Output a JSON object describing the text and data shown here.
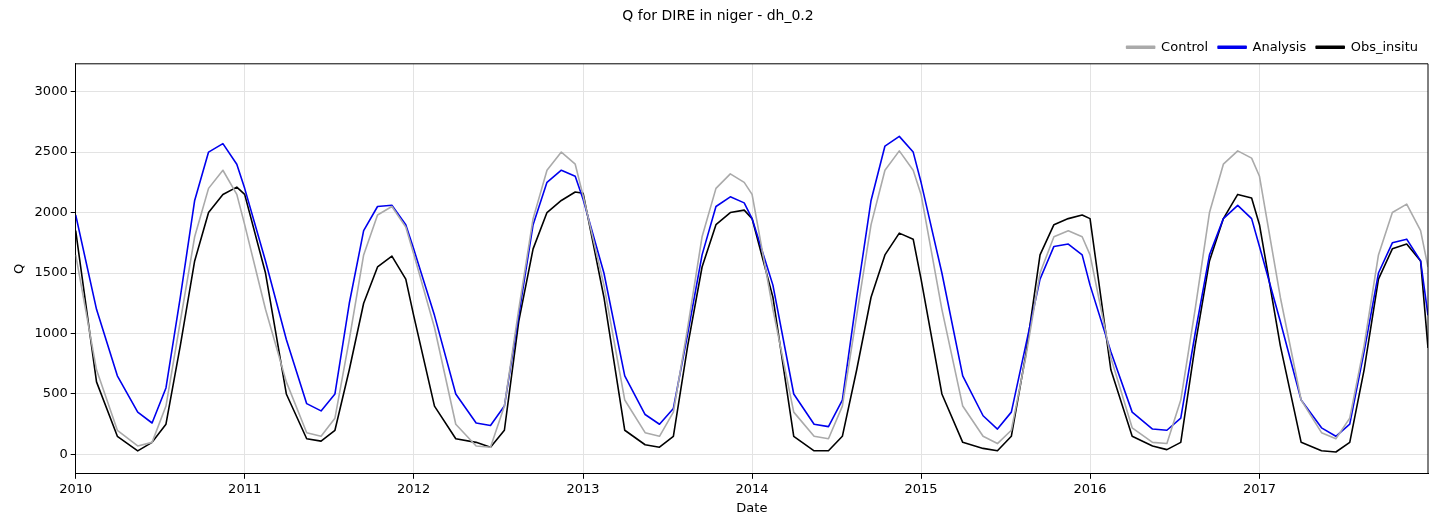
{
  "chart_data": {
    "type": "line",
    "title": "Q for DIRE in niger - dh_0.2",
    "xlabel": "Date",
    "ylabel": "Q",
    "x": [
      "2010-01-01",
      "2010-02-15",
      "2010-04-01",
      "2010-05-15",
      "2010-06-15",
      "2010-07-15",
      "2010-08-15",
      "2010-09-15",
      "2010-10-15",
      "2010-11-15",
      "2010-12-15",
      "2011-01-01",
      "2011-02-15",
      "2011-04-01",
      "2011-05-15",
      "2011-06-15",
      "2011-07-15",
      "2011-08-15",
      "2011-09-15",
      "2011-10-15",
      "2011-11-15",
      "2011-12-15",
      "2012-01-01",
      "2012-02-15",
      "2012-04-01",
      "2012-05-15",
      "2012-06-15",
      "2012-07-15",
      "2012-08-15",
      "2012-09-15",
      "2012-10-15",
      "2012-11-15",
      "2012-12-15",
      "2013-01-01",
      "2013-02-15",
      "2013-04-01",
      "2013-05-15",
      "2013-06-15",
      "2013-07-15",
      "2013-08-15",
      "2013-09-15",
      "2013-10-15",
      "2013-11-15",
      "2013-12-15",
      "2014-01-01",
      "2014-02-15",
      "2014-04-01",
      "2014-05-15",
      "2014-06-15",
      "2014-07-15",
      "2014-08-15",
      "2014-09-15",
      "2014-10-15",
      "2014-11-15",
      "2014-12-15",
      "2015-01-01",
      "2015-02-15",
      "2015-04-01",
      "2015-05-15",
      "2015-06-15",
      "2015-07-15",
      "2015-08-15",
      "2015-09-15",
      "2015-10-15",
      "2015-11-15",
      "2015-12-15",
      "2016-01-01",
      "2016-02-15",
      "2016-04-01",
      "2016-05-15",
      "2016-06-15",
      "2016-07-15",
      "2016-08-15",
      "2016-09-15",
      "2016-10-15",
      "2016-11-15",
      "2016-12-15",
      "2017-01-01",
      "2017-02-15",
      "2017-04-01",
      "2017-05-15",
      "2017-06-15",
      "2017-07-15",
      "2017-08-15",
      "2017-09-15",
      "2017-10-15",
      "2017-11-15",
      "2017-12-15",
      "2017-12-31"
    ],
    "series": [
      {
        "name": "Control",
        "color": "#aaaaaa",
        "values": [
          1650,
          700,
          200,
          70,
          100,
          400,
          1100,
          1800,
          2200,
          2350,
          2150,
          1900,
          1200,
          600,
          180,
          150,
          300,
          950,
          1650,
          1980,
          2050,
          1880,
          1660,
          1050,
          250,
          70,
          60,
          400,
          1200,
          1950,
          2350,
          2500,
          2400,
          2140,
          1400,
          450,
          180,
          150,
          350,
          1050,
          1800,
          2200,
          2320,
          2250,
          2150,
          1200,
          350,
          150,
          130,
          400,
          1150,
          1900,
          2350,
          2510,
          2350,
          2150,
          1200,
          400,
          150,
          90,
          200,
          800,
          1500,
          1800,
          1850,
          1800,
          1650,
          800,
          220,
          100,
          90,
          450,
          1200,
          2000,
          2400,
          2510,
          2450,
          2300,
          1300,
          450,
          180,
          130,
          300,
          900,
          1650,
          2000,
          2070,
          1850,
          1550
        ]
      },
      {
        "name": "Analysis",
        "color": "#0000ee",
        "values": [
          1980,
          1200,
          650,
          350,
          260,
          550,
          1300,
          2100,
          2500,
          2570,
          2400,
          2200,
          1600,
          950,
          420,
          360,
          500,
          1250,
          1850,
          2050,
          2060,
          1900,
          1700,
          1150,
          500,
          260,
          240,
          400,
          1150,
          1900,
          2250,
          2350,
          2300,
          2110,
          1500,
          650,
          330,
          250,
          380,
          1000,
          1650,
          2050,
          2130,
          2080,
          1950,
          1400,
          500,
          250,
          230,
          450,
          1300,
          2100,
          2550,
          2630,
          2500,
          2250,
          1500,
          650,
          320,
          210,
          350,
          900,
          1450,
          1720,
          1740,
          1650,
          1400,
          850,
          350,
          210,
          200,
          300,
          1000,
          1650,
          1950,
          2060,
          1950,
          1720,
          1100,
          450,
          220,
          150,
          250,
          850,
          1500,
          1750,
          1780,
          1600,
          1150
        ]
      },
      {
        "name": "Obs_insitu",
        "color": "#000000",
        "values": [
          1850,
          600,
          150,
          30,
          100,
          250,
          900,
          1600,
          2000,
          2150,
          2210,
          2150,
          1500,
          500,
          130,
          110,
          200,
          700,
          1250,
          1550,
          1640,
          1450,
          1150,
          400,
          130,
          100,
          60,
          200,
          1100,
          1700,
          2000,
          2100,
          2170,
          2160,
          1300,
          200,
          80,
          60,
          150,
          900,
          1550,
          1900,
          2000,
          2020,
          1950,
          1300,
          150,
          30,
          30,
          150,
          700,
          1300,
          1650,
          1830,
          1780,
          1450,
          500,
          100,
          50,
          30,
          150,
          820,
          1650,
          1900,
          1950,
          1980,
          1950,
          700,
          150,
          70,
          40,
          100,
          900,
          1600,
          1950,
          2150,
          2120,
          1900,
          900,
          100,
          30,
          20,
          100,
          700,
          1450,
          1700,
          1740,
          1600,
          880
        ]
      }
    ],
    "xlim": [
      "2010-01-01",
      "2017-12-31"
    ],
    "xticks": [
      "2010",
      "2011",
      "2012",
      "2013",
      "2014",
      "2015",
      "2016",
      "2017"
    ],
    "ylim": [
      -160,
      3230
    ],
    "yticks": [
      0,
      500,
      1000,
      1500,
      2000,
      2500,
      3000
    ],
    "grid": true,
    "legend": "top right",
    "marker": "none",
    "line_style": "solid"
  }
}
